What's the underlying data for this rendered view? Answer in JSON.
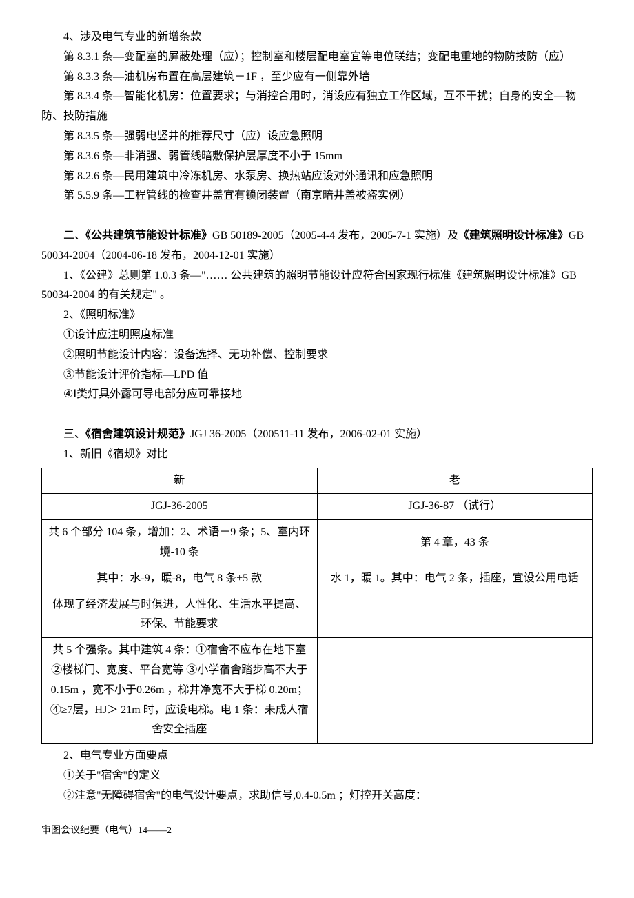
{
  "section1": {
    "item4_title": "4、涉及电气专业的新增条款",
    "p831": "第 8.3.1 条—变配室的屏蔽处理（应）；控制室和楼层配电室宜等电位联结；变配电重地的物防技防（应）",
    "p833": "第 8.3.3 条—油机房布置在高层建筑－1F  ，至少应有一侧靠外墙",
    "p834": "第 8.3.4 条—智能化机房：位置要求；与消控合用时，消设应有独立工作区域，互不干扰；自身的安全—物防、技防措施",
    "p835": "第 8.3.5 条—强弱电竖井的推荐尺寸（应）设应急照明",
    "p836": "第 8.3.6 条—非消强、弱管线暗敷保护层厚度不小于 15mm",
    "p826": "第 8.2.6 条—民用建筑中冷冻机房、水泵房、换热站应设对外通讯和应急照明",
    "p559": "第 5.5.9 条—工程管线的检查井盖宜有锁闭装置（南京暗井盖被盗实例）"
  },
  "section2": {
    "title_pre": "二、",
    "title_b1": "《公共建筑节能设计标准》",
    "title_mid": "GB 50189-2005（2005-4-4  发布，2005-7-1  实施）及",
    "title_b2": "《建筑照明设计标准》",
    "title_end": "GB 50034-2004（2004-06-18  发布，2004-12-01 实施）",
    "p1": "1、《公建》总则第 1.0.3 条—\"……  公共建筑的照明节能设计应符合国家现行标准《建筑照明设计标准》GB 50034-2004  的有关规定\" 。",
    "p2": "2、《照明标准》",
    "p2_1": "①设计应注明照度标准",
    "p2_2": "②照明节能设计内容：设备选择、无功补偿、控制要求",
    "p2_3": "③节能设计评价指标—LPD  值",
    "p2_4": "④Ⅰ类灯具外露可导电部分应可靠接地"
  },
  "section3": {
    "title_pre": "三、",
    "title_b": "《宿舍建筑设计规范》",
    "title_end": "JGJ 36-2005（200511-11 发布，2006-02-01 实施）",
    "p1": "1、新旧《宿规》对比",
    "table": {
      "rows": [
        [
          "新",
          "老"
        ],
        [
          "JGJ-36-2005",
          "JGJ-36-87  （试行）"
        ],
        [
          "共 6 个部分 104  条，增加：2、术语－9 条；5、室内环境-10 条",
          "第 4 章，43 条"
        ],
        [
          "其中：水-9，暖-8，电气 8 条+5 款",
          "水 1，暖 1。其中：电气 2 条，插座，宜设公用电话"
        ],
        [
          "体现了经济发展与时俱进，人性化、生活水平提高、环保、节能要求",
          ""
        ],
        [
          "共 5  个强条。其中建筑 4 条：①宿舍不应布在地下室  ②楼梯门、宽度、平台宽等  ③小学宿舍踏步高不大于 0.15m  ，宽不小于0.26m  ，梯井净宽不大于梯 0.20m；④≥7层，HJ＞ 21m 时，应设电梯。电 1 条：未成人宿舍安全插座",
          ""
        ]
      ]
    },
    "p2": "2、电气专业方面要点",
    "p2_1": "①关于\"宿舍\"的定义",
    "p2_2": "②注意\"无障碍宿舍\"的电气设计要点，求助信号,0.4-0.5m  ；灯控开关高度："
  },
  "footer": "审图会议纪要（电气）14——2"
}
